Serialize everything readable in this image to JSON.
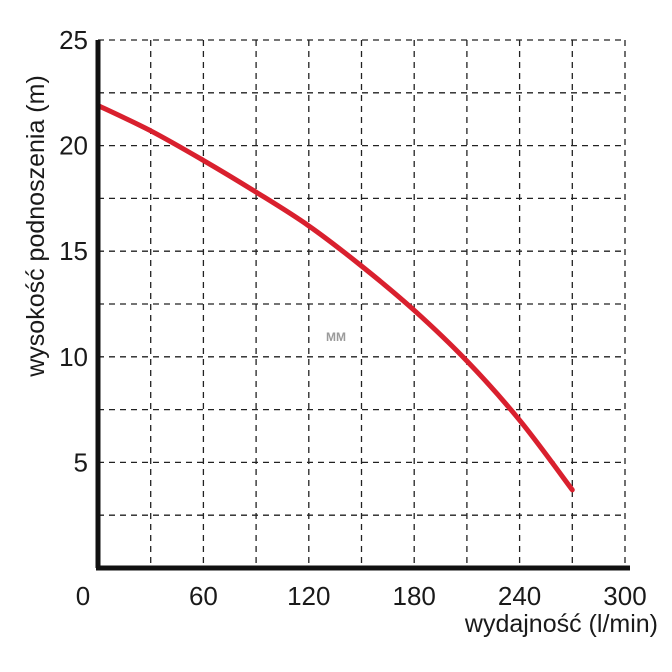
{
  "chart_data": {
    "type": "line",
    "xlabel": "wydajność (l/min)",
    "ylabel": "wysokość podnoszenia (m)",
    "xlim": [
      0,
      300
    ],
    "ylim": [
      0,
      25
    ],
    "x_ticks": [
      "0",
      "60",
      "120",
      "180",
      "240",
      "300"
    ],
    "y_ticks": [
      "5",
      "10",
      "15",
      "20",
      "25"
    ],
    "grid": true,
    "watermark": "MM",
    "series": [
      {
        "color": "#d9202e",
        "x": [
          0,
          30,
          60,
          90,
          120,
          150,
          180,
          210,
          240,
          270
        ],
        "y": [
          21.9,
          20.7,
          19.3,
          17.8,
          16.2,
          14.3,
          12.2,
          9.8,
          7.0,
          3.7
        ]
      }
    ]
  }
}
